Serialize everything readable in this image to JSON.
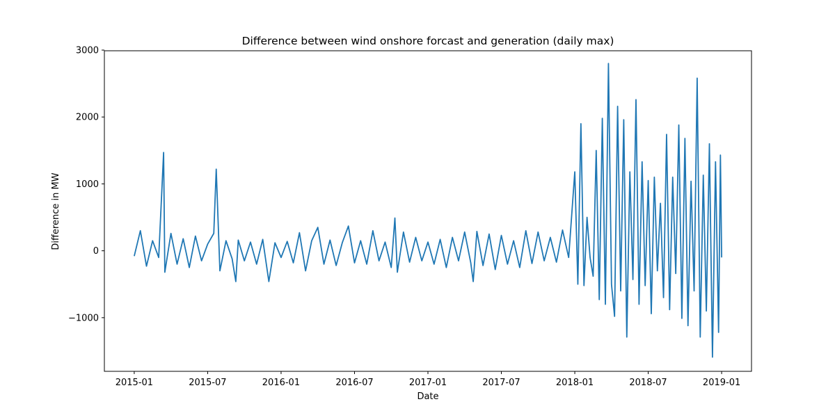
{
  "chart_data": {
    "type": "line",
    "title": "Difference between wind onshore forcast and generation (daily max)",
    "x_label": "Date",
    "y_label": "Difference in MW",
    "x": [
      0,
      0.5,
      1,
      1.5,
      2,
      2.4,
      2.5,
      3,
      3.5,
      4,
      4.5,
      5,
      5.5,
      6,
      6.5,
      6.7,
      7,
      7.5,
      8,
      8.3,
      8.5,
      9,
      9.5,
      10,
      10.5,
      11,
      11.5,
      12,
      12.5,
      13,
      13.5,
      14,
      14.5,
      15,
      15.5,
      16,
      16.5,
      17,
      17.5,
      18,
      18.5,
      19,
      19.5,
      20,
      20.5,
      21,
      21.3,
      21.5,
      22,
      22.5,
      23,
      23.5,
      24,
      24.5,
      25,
      25.5,
      26,
      26.5,
      27,
      27.5,
      27.7,
      28,
      28.5,
      29,
      29.5,
      30,
      30.5,
      31,
      31.5,
      32,
      32.5,
      33,
      33.5,
      34,
      34.5,
      35,
      35.5,
      36,
      36.25,
      36.5,
      36.75,
      37,
      37.25,
      37.5,
      37.75,
      38,
      38.25,
      38.5,
      38.75,
      39,
      39.25,
      39.5,
      39.75,
      40,
      40.25,
      40.5,
      40.75,
      41,
      41.25,
      41.5,
      41.75,
      42,
      42.25,
      42.5,
      42.75,
      43,
      43.25,
      43.5,
      43.75,
      44,
      44.25,
      44.5,
      44.75,
      45,
      45.25,
      45.5,
      45.75,
      46,
      46.25,
      46.5,
      46.75,
      47,
      47.25,
      47.5,
      47.75,
      47.9,
      48
    ],
    "series": [
      {
        "name": "Difference",
        "color": "#1f77b4",
        "values": [
          -80,
          300,
          -230,
          150,
          -100,
          1470,
          -320,
          260,
          -200,
          180,
          -250,
          220,
          -150,
          100,
          260,
          1220,
          -300,
          150,
          -120,
          -460,
          160,
          -150,
          130,
          -200,
          170,
          -460,
          120,
          -100,
          140,
          -180,
          270,
          -300,
          150,
          350,
          -200,
          160,
          -220,
          120,
          370,
          -180,
          150,
          -200,
          300,
          -150,
          130,
          -250,
          490,
          -320,
          280,
          -170,
          200,
          -150,
          130,
          -200,
          170,
          -250,
          200,
          -150,
          280,
          -180,
          -460,
          290,
          -220,
          250,
          -280,
          230,
          -200,
          150,
          -250,
          300,
          -190,
          280,
          -150,
          200,
          -170,
          310,
          -100,
          1180,
          -500,
          1900,
          -520,
          500,
          -100,
          -380,
          1500,
          -730,
          1980,
          -800,
          2800,
          -500,
          -980,
          2160,
          -600,
          1960,
          -1290,
          1180,
          -430,
          2260,
          -800,
          1330,
          -520,
          1050,
          -940,
          1100,
          -300,
          710,
          -700,
          1740,
          -880,
          1100,
          -340,
          1880,
          -1010,
          1680,
          -1120,
          1040,
          -600,
          2580,
          -1290,
          1130,
          -900,
          1600,
          -1590,
          1330,
          -1220,
          1430,
          -100
        ]
      }
    ],
    "xlim": [
      -2.44,
      50.44
    ],
    "xticks": [
      {
        "value": 0,
        "label": "2015-01"
      },
      {
        "value": 6,
        "label": "2015-07"
      },
      {
        "value": 12,
        "label": "2016-01"
      },
      {
        "value": 18,
        "label": "2016-07"
      },
      {
        "value": 24,
        "label": "2017-01"
      },
      {
        "value": 30,
        "label": "2017-07"
      },
      {
        "value": 36,
        "label": "2018-01"
      },
      {
        "value": 42,
        "label": "2018-07"
      },
      {
        "value": 48,
        "label": "2019-01"
      }
    ],
    "ylim": [
      -1802,
      2990
    ],
    "yticks": [
      {
        "value": -1000,
        "label": "−1000"
      },
      0,
      1000,
      2000,
      3000
    ]
  }
}
